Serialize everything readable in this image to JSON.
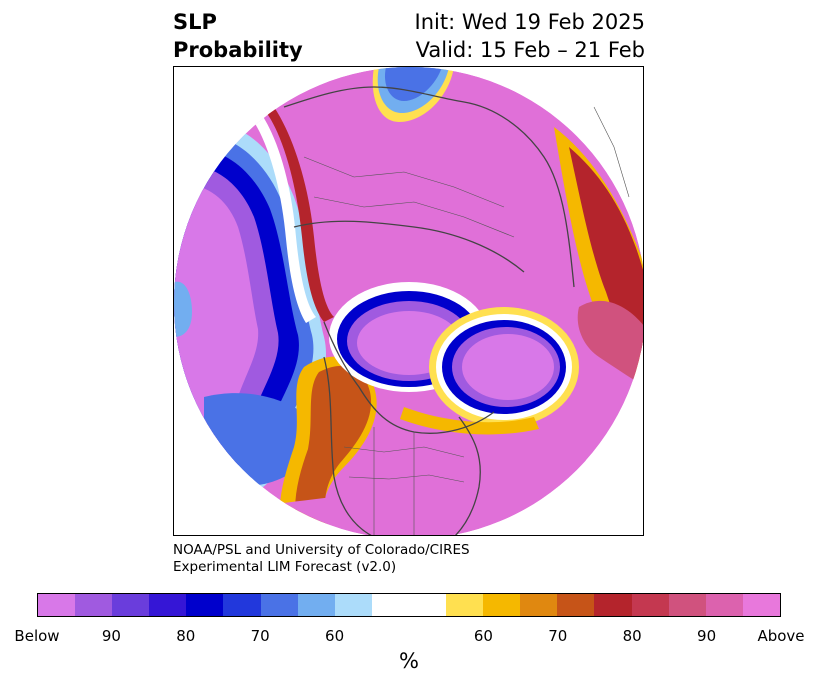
{
  "header": {
    "title_line1": "SLP",
    "title_line2": "Probability",
    "init": "Init: Wed 19 Feb 2025",
    "valid": "Valid: 15 Feb – 21 Feb"
  },
  "credit": {
    "line1": "NOAA/PSL and University of Colorado/CIRES",
    "line2": "Experimental LIM Forecast (v2.0)"
  },
  "colorbar": {
    "unit": "%",
    "below_colors": [
      "#d878e8",
      "#a05ae0",
      "#6a3ddc",
      "#3516d6",
      "#0000cc",
      "#2238dc",
      "#4a72e6",
      "#72aef0",
      "#acdcfa"
    ],
    "neutral_color": "#ffffff",
    "above_colors": [
      "#ffe050",
      "#f5b800",
      "#e08810",
      "#c65418",
      "#b4242c",
      "#c43850",
      "#d0527e",
      "#dc62ae",
      "#e878dc"
    ],
    "tick_labels": [
      "Below",
      "90",
      "80",
      "70",
      "60",
      "60",
      "70",
      "80",
      "90",
      "Above"
    ]
  },
  "map": {
    "projection": "north-polar-stereographic",
    "field": "sea-level-pressure probability"
  }
}
